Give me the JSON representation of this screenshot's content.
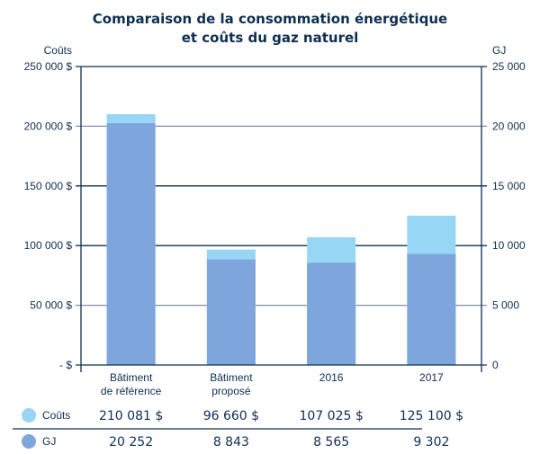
{
  "chart_data": {
    "type": "bar",
    "title_lines": [
      "Comparaison de la consommation énergétique",
      "et coûts du gaz naturel"
    ],
    "categories": [
      [
        "Bâtiment",
        "de référence"
      ],
      [
        "Bâtiment",
        "proposé"
      ],
      [
        "2016"
      ],
      [
        "2017"
      ]
    ],
    "left_axis": {
      "label": "Coûts",
      "range": [
        0,
        250000
      ],
      "ticks": [
        0,
        50000,
        100000,
        150000,
        200000,
        250000
      ],
      "tick_labels": [
        "- $",
        "50 000 $",
        "100 000 $",
        "150 000 $",
        "200 000 $",
        "250 000 $"
      ]
    },
    "right_axis": {
      "label": "GJ",
      "range": [
        0,
        25000
      ],
      "ticks": [
        0,
        5000,
        10000,
        15000,
        20000,
        25000
      ],
      "tick_labels": [
        "0",
        "5 000",
        "10 000",
        "15 000",
        "20 000",
        "25 000"
      ]
    },
    "series": [
      {
        "name": "Coûts",
        "axis": "left",
        "color": "#97d6f5",
        "values": [
          210081,
          96660,
          107025,
          125100
        ],
        "labels": [
          "210 081 $",
          "96 660 $",
          "107 025 $",
          "125 100 $"
        ]
      },
      {
        "name": "GJ",
        "axis": "right",
        "color": "#7fa6dc",
        "values": [
          20252,
          8843,
          8565,
          9302
        ],
        "labels": [
          "20 252",
          "8 843",
          "8 565",
          "9 302"
        ]
      }
    ],
    "grid": true,
    "legend": "bottom-table",
    "colors": {
      "text": "#0f2f52",
      "grid_dark": "#0f2f52",
      "grid_light": "#7e93a8"
    }
  }
}
